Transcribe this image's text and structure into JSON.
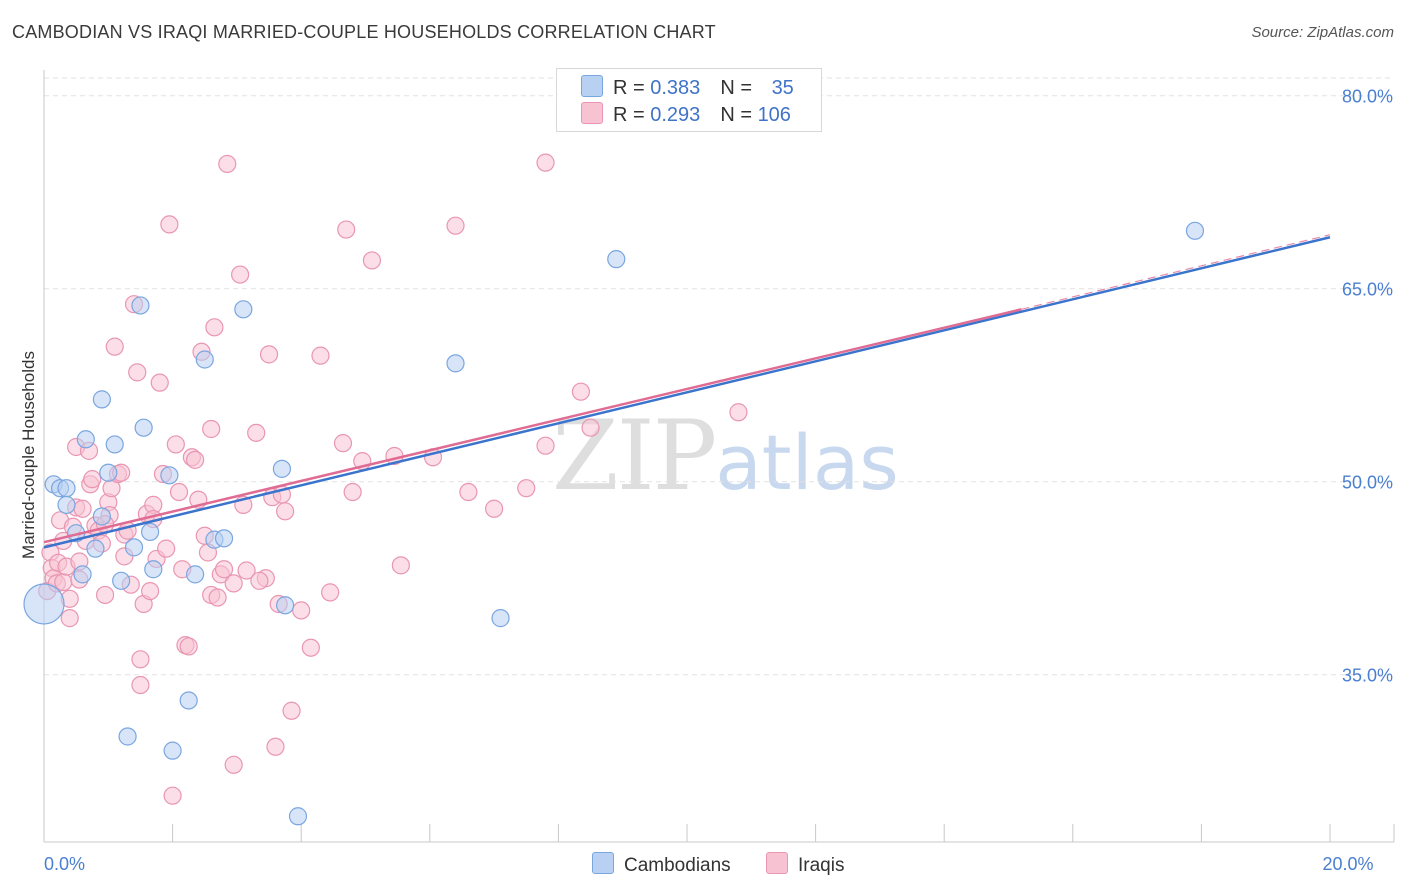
{
  "title": "CAMBODIAN VS IRAQI MARRIED-COUPLE HOUSEHOLDS CORRELATION CHART",
  "source": "Source: ZipAtlas.com",
  "watermark": {
    "zip": "ZIP",
    "atlas": "atlas"
  },
  "legend_top": {
    "cambodians": {
      "r_label": "R = ",
      "r_value": "0.383",
      "n_label": "N = ",
      "n_value": "35"
    },
    "iraqis": {
      "r_label": "R = ",
      "r_value": "0.293",
      "n_label": "N = ",
      "n_value": "106"
    }
  },
  "legend_bottom": {
    "cambodians": "Cambodians",
    "iraqis": "Iraqis"
  },
  "colors": {
    "blue_fill": "#b8d0f2",
    "blue_stroke": "#7aa6e0",
    "blue_line": "#3a74cc",
    "pink_fill": "#f7c3d3",
    "pink_stroke": "#e996b2",
    "pink_line": "#e06b93",
    "grid": "#e2e2e2",
    "axis_text": "#4a7fd0"
  },
  "chart_data": {
    "type": "scatter",
    "title": "CAMBODIAN VS IRAQI MARRIED-COUPLE HOUSEHOLDS CORRELATION CHART",
    "xlabel": "",
    "ylabel": "Married-couple Households",
    "xlim": [
      0,
      20
    ],
    "ylim": [
      22,
      82
    ],
    "x_tick_labels": [
      {
        "value": 0,
        "label": "0.0%"
      },
      {
        "value": 20,
        "label": "20.0%"
      }
    ],
    "y_tick_labels": [
      {
        "value": 80,
        "label": "80.0%"
      },
      {
        "value": 65,
        "label": "65.0%"
      },
      {
        "value": 50,
        "label": "50.0%"
      },
      {
        "value": 35,
        "label": "35.0%"
      }
    ],
    "series": [
      {
        "name": "Cambodians",
        "r": 0.383,
        "n": 35,
        "trend": {
          "x": [
            0,
            20
          ],
          "y": [
            44.9,
            69.0
          ]
        },
        "points": [
          [
            0.0,
            40.5,
            "big"
          ],
          [
            0.15,
            49.8
          ],
          [
            0.25,
            49.5
          ],
          [
            0.35,
            49.5
          ],
          [
            0.35,
            48.2
          ],
          [
            0.5,
            46.0
          ],
          [
            0.6,
            42.8
          ],
          [
            0.65,
            53.3
          ],
          [
            0.8,
            44.8
          ],
          [
            0.9,
            47.3
          ],
          [
            0.9,
            56.4
          ],
          [
            1.0,
            50.7
          ],
          [
            1.1,
            52.9
          ],
          [
            1.2,
            42.3
          ],
          [
            1.3,
            30.2
          ],
          [
            1.4,
            44.9
          ],
          [
            1.5,
            63.7
          ],
          [
            1.55,
            54.2
          ],
          [
            1.65,
            46.1
          ],
          [
            1.7,
            43.2
          ],
          [
            1.95,
            50.5
          ],
          [
            2.0,
            29.1
          ],
          [
            2.25,
            33.0
          ],
          [
            2.35,
            42.8
          ],
          [
            2.5,
            59.5
          ],
          [
            2.65,
            45.5
          ],
          [
            2.8,
            45.6
          ],
          [
            3.1,
            63.4
          ],
          [
            3.7,
            51.0
          ],
          [
            3.75,
            40.4
          ],
          [
            3.95,
            24.0
          ],
          [
            6.4,
            59.2
          ],
          [
            7.1,
            39.4
          ],
          [
            8.9,
            67.3
          ],
          [
            17.9,
            69.5
          ]
        ]
      },
      {
        "name": "Iraqis",
        "r": 0.293,
        "n": 106,
        "trend": {
          "x": [
            0,
            15.2
          ],
          "y": [
            45.3,
            63.4
          ]
        },
        "trend_dashed": {
          "x": [
            15.2,
            20
          ],
          "y": [
            63.4,
            69.2
          ]
        },
        "points": [
          [
            0.05,
            41.5
          ],
          [
            0.1,
            44.5
          ],
          [
            0.12,
            43.3
          ],
          [
            0.15,
            42.5
          ],
          [
            0.2,
            42.1
          ],
          [
            0.22,
            43.7
          ],
          [
            0.25,
            47.0
          ],
          [
            0.3,
            45.4
          ],
          [
            0.3,
            42.2
          ],
          [
            0.35,
            43.4
          ],
          [
            0.4,
            39.4
          ],
          [
            0.45,
            46.5
          ],
          [
            0.5,
            52.7
          ],
          [
            0.5,
            48.0
          ],
          [
            0.55,
            42.4
          ],
          [
            0.6,
            47.9
          ],
          [
            0.65,
            45.4
          ],
          [
            0.7,
            52.4
          ],
          [
            0.72,
            49.8
          ],
          [
            0.75,
            50.2
          ],
          [
            0.8,
            46.6
          ],
          [
            0.85,
            46.2
          ],
          [
            0.9,
            45.2
          ],
          [
            0.95,
            41.2
          ],
          [
            1.0,
            48.4
          ],
          [
            1.02,
            47.4
          ],
          [
            1.05,
            49.5
          ],
          [
            1.1,
            60.5
          ],
          [
            1.15,
            50.6
          ],
          [
            1.2,
            50.7
          ],
          [
            1.25,
            45.9
          ],
          [
            1.3,
            46.2
          ],
          [
            1.35,
            42.0
          ],
          [
            1.4,
            63.8
          ],
          [
            1.45,
            58.5
          ],
          [
            1.5,
            36.2
          ],
          [
            1.5,
            34.2
          ],
          [
            1.55,
            40.5
          ],
          [
            1.6,
            47.5
          ],
          [
            1.65,
            41.5
          ],
          [
            1.7,
            48.2
          ],
          [
            1.75,
            44.0
          ],
          [
            1.8,
            57.7
          ],
          [
            1.85,
            50.6
          ],
          [
            1.9,
            44.8
          ],
          [
            1.95,
            70.0
          ],
          [
            2.0,
            25.6
          ],
          [
            2.05,
            52.9
          ],
          [
            2.1,
            49.2
          ],
          [
            2.15,
            43.2
          ],
          [
            2.2,
            37.3
          ],
          [
            2.25,
            37.2
          ],
          [
            2.3,
            51.9
          ],
          [
            2.35,
            51.7
          ],
          [
            2.4,
            48.6
          ],
          [
            2.45,
            60.1
          ],
          [
            2.5,
            45.8
          ],
          [
            2.55,
            44.5
          ],
          [
            2.6,
            54.1
          ],
          [
            2.6,
            41.2
          ],
          [
            2.65,
            62.0
          ],
          [
            2.7,
            41.0
          ],
          [
            2.75,
            42.8
          ],
          [
            2.8,
            43.2
          ],
          [
            2.85,
            74.7
          ],
          [
            2.95,
            28.0
          ],
          [
            3.05,
            66.1
          ],
          [
            3.1,
            48.2
          ],
          [
            3.15,
            43.1
          ],
          [
            3.3,
            53.8
          ],
          [
            3.45,
            42.5
          ],
          [
            3.5,
            59.9
          ],
          [
            3.55,
            48.8
          ],
          [
            3.6,
            29.4
          ],
          [
            3.65,
            40.5
          ],
          [
            3.7,
            49.0
          ],
          [
            3.75,
            47.7
          ],
          [
            3.85,
            32.2
          ],
          [
            4.0,
            40.0
          ],
          [
            4.15,
            37.1
          ],
          [
            4.3,
            59.8
          ],
          [
            4.45,
            41.4
          ],
          [
            4.65,
            53.0
          ],
          [
            4.7,
            69.6
          ],
          [
            4.8,
            49.2
          ],
          [
            4.95,
            51.6
          ],
          [
            5.1,
            67.2
          ],
          [
            5.45,
            52.0
          ],
          [
            5.55,
            43.5
          ],
          [
            6.05,
            51.9
          ],
          [
            6.4,
            69.9
          ],
          [
            6.6,
            49.2
          ],
          [
            7.0,
            47.9
          ],
          [
            7.5,
            49.5
          ],
          [
            7.8,
            52.8
          ],
          [
            7.8,
            74.8
          ],
          [
            8.35,
            57.0
          ],
          [
            8.5,
            54.2
          ],
          [
            10.8,
            55.4
          ],
          [
            0.4,
            40.9
          ],
          [
            0.55,
            43.8
          ],
          [
            0.95,
            46.7
          ],
          [
            1.25,
            44.2
          ],
          [
            1.7,
            47.1
          ],
          [
            2.95,
            42.1
          ],
          [
            3.35,
            42.3
          ]
        ]
      }
    ]
  }
}
